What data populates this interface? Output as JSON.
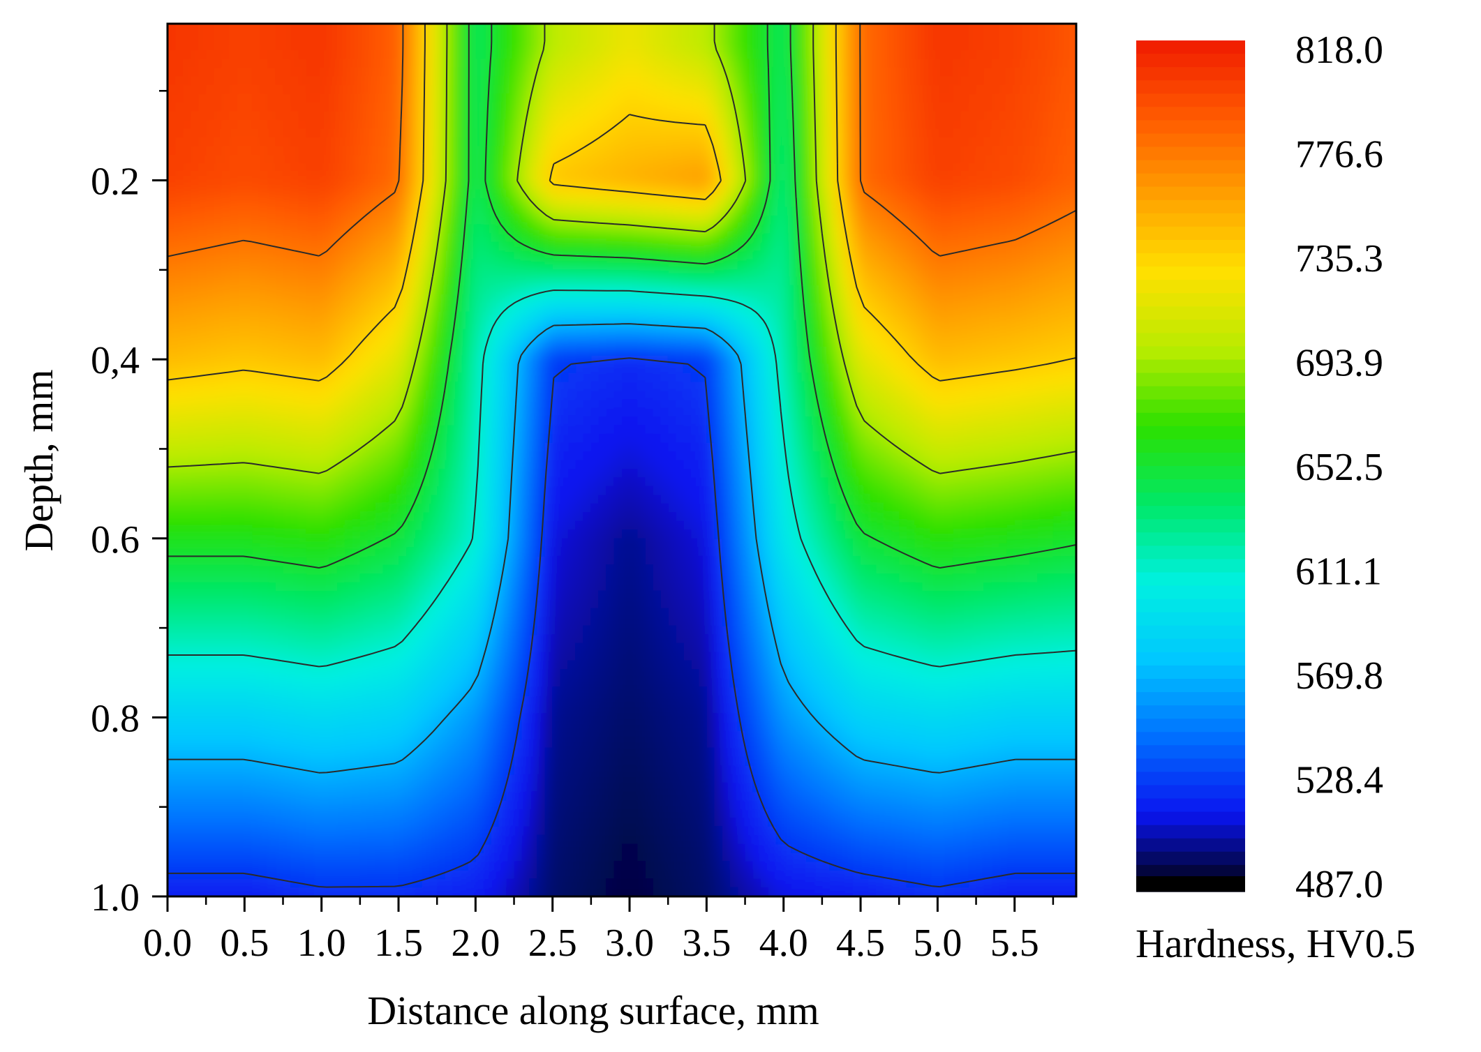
{
  "chart_data": {
    "type": "heatmap",
    "subtype": "filled-contour",
    "title": "",
    "xlabel": "Distance along surface, mm",
    "ylabel": "Depth, mm",
    "colorbar_label": "Hardness, HV0.5",
    "x_ticks": [
      "0.0",
      "0.5",
      "1.0",
      "1.5",
      "2.0",
      "2.5",
      "3.0",
      "3.5",
      "4.0",
      "4.5",
      "5.0",
      "5.5"
    ],
    "y_ticks": [
      "0.2",
      "0,4",
      "0.6",
      "0.8",
      "1.0"
    ],
    "y_tick_values": [
      0.2,
      0.4,
      0.6,
      0.8,
      1.0
    ],
    "colorbar_ticks": [
      "818.0",
      "776.6",
      "735.3",
      "693.9",
      "652.5",
      "611.1",
      "569.8",
      "528.4",
      "487.0"
    ],
    "xlim": [
      0,
      5.9
    ],
    "ylim": [
      0.025,
      1.0
    ],
    "y_inverted": true,
    "zlim": [
      487.0,
      818.0
    ],
    "colormap": [
      "#000000",
      "#0a14f0",
      "#0070ff",
      "#00c8ff",
      "#00f0e0",
      "#00e868",
      "#2ce000",
      "#b8ec00",
      "#ffe000",
      "#ffa000",
      "#ff5a00",
      "#f01a00"
    ],
    "contour_color": "#2a2a2a",
    "x": [
      0.0,
      0.5,
      1.0,
      1.5,
      2.0,
      2.5,
      3.0,
      3.5,
      4.0,
      4.5,
      5.0,
      5.5,
      5.9
    ],
    "y": [
      0.05,
      0.2,
      0.4,
      0.6,
      0.8,
      1.0
    ],
    "z": [
      [
        805,
        800,
        805,
        785,
        640,
        700,
        720,
        700,
        640,
        780,
        805,
        800,
        790
      ],
      [
        800,
        795,
        800,
        780,
        640,
        740,
        750,
        760,
        630,
        780,
        800,
        795,
        785
      ],
      [
        745,
        740,
        745,
        715,
        620,
        530,
        525,
        530,
        620,
        715,
        745,
        740,
        735
      ],
      [
        660,
        660,
        665,
        650,
        610,
        515,
        505,
        515,
        600,
        650,
        665,
        660,
        655
      ],
      [
        585,
        585,
        590,
        585,
        560,
        505,
        500,
        505,
        560,
        585,
        590,
        585,
        585
      ],
      [
        520,
        520,
        525,
        525,
        520,
        500,
        495,
        500,
        515,
        520,
        525,
        520,
        520
      ]
    ]
  }
}
